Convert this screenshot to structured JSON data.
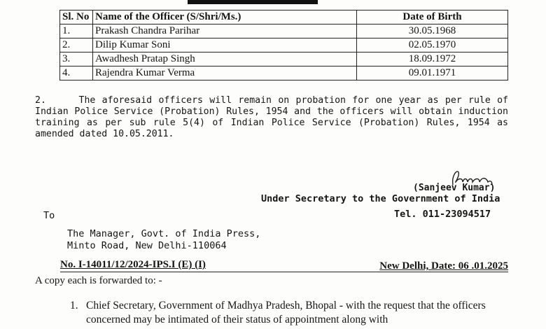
{
  "table": {
    "headers": [
      "Sl. No",
      "Name of the Officer (S/Shri/Ms.)",
      "Date of Birth"
    ],
    "rows": [
      {
        "sl": "1.",
        "name": "Prakash Chandra Parihar",
        "dob": "30.05.1968"
      },
      {
        "sl": "2.",
        "name": "Dilip Kumar Soni",
        "dob": "02.05.1970"
      },
      {
        "sl": "3.",
        "name": "Awadhesh Pratap Singh",
        "dob": "18.09.1972"
      },
      {
        "sl": "4.",
        "name": "Rajendra Kumar Verma",
        "dob": "09.01.1971"
      }
    ]
  },
  "paragraph2": {
    "number": "2.",
    "text": "The aforesaid officers will remain on probation for one year as per rule of Indian Police Service (Probation) Rules, 1954 and the officers will obtain induction training as per sub rule 5(4) of Indian Police Service (Probation) Rules, 1954 as amended dated 10.05.2011."
  },
  "signatory": {
    "name": "(Sanjeev Kumar)",
    "designation": "Under Secretary to the Government of India",
    "tel": "Tel. 011-23094517"
  },
  "to": {
    "label": "To",
    "line1": "The Manager, Govt. of India Press,",
    "line2": "Minto Road, New Delhi-110064"
  },
  "reference": {
    "number": "No. I-14011/12/2024-IPS.I (E) (I)",
    "place_date": "New Delhi, Date:  06 .01.2025"
  },
  "copy_intro": "A copy each is forwarded to: -",
  "copy_items": [
    {
      "num": "1.",
      "text": "Chief Secretary, Government of Madhya Pradesh, Bhopal - with the request that the officers concerned may be intimated of their status of appointment along with"
    }
  ]
}
